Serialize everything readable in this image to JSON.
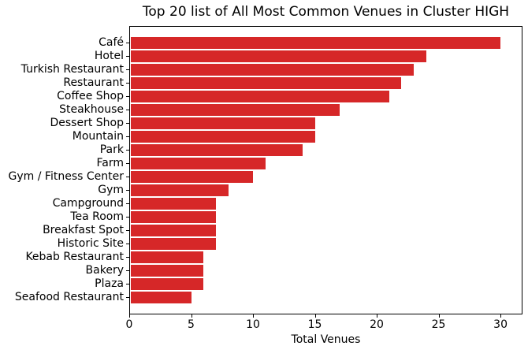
{
  "chart_data": {
    "type": "bar",
    "orientation": "horizontal",
    "title": "Top 20 list of All Most Common Venues in Cluster HIGH",
    "xlabel": "Total Venues",
    "ylabel": "",
    "categories": [
      "Café",
      "Hotel",
      "Turkish Restaurant",
      "Restaurant",
      "Coffee Shop",
      "Steakhouse",
      "Dessert Shop",
      "Mountain",
      "Park",
      "Farm",
      "Gym / Fitness Center",
      "Gym",
      "Campground",
      "Tea Room",
      "Breakfast Spot",
      "Historic Site",
      "Kebab Restaurant",
      "Bakery",
      "Plaza",
      "Seafood Restaurant"
    ],
    "values": [
      30,
      24,
      23,
      22,
      21,
      17,
      15,
      15,
      14,
      11,
      10,
      8,
      7,
      7,
      7,
      7,
      6,
      6,
      6,
      5
    ],
    "xticks": [
      0,
      5,
      10,
      15,
      20,
      25,
      30
    ],
    "xlim": [
      0,
      31.65
    ],
    "grid": false,
    "legend": null,
    "bar_color": "#d62728",
    "bar_edge_color": "#ffffff",
    "axis_color": "#000000",
    "text_color": "#000000",
    "background_color": "#ffffff"
  }
}
